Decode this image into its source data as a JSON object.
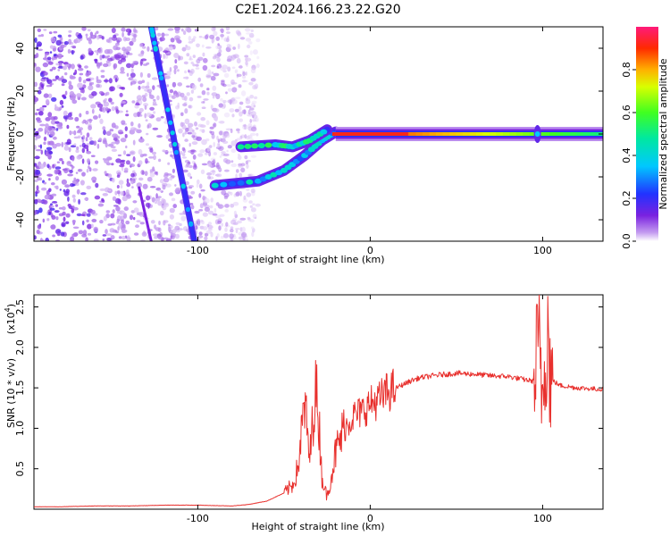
{
  "title": "C2E1.2024.166.23.22.G20",
  "chart_data": [
    {
      "type": "heatmap",
      "xlabel": "Height of straight line (km)",
      "ylabel": "Frequency (Hz)",
      "xlim": [
        -195,
        135
      ],
      "ylim": [
        -50,
        50
      ],
      "xticks": [
        -100,
        0,
        100
      ],
      "yticks": [
        -40,
        -20,
        0,
        20,
        40
      ],
      "colorbar": {
        "label": "Normalized spectral amplitude",
        "range": [
          0.0,
          1.0
        ],
        "ticks": [
          "0.0",
          "0.2",
          "0.4",
          "0.6",
          "0.8"
        ],
        "tick_values": [
          0.0,
          0.2,
          0.4,
          0.6,
          0.8
        ]
      },
      "features": {
        "noise_region_x": [
          -195,
          -65
        ],
        "steep_line_1": {
          "x": [
            -127,
            -102
          ],
          "y": [
            50,
            -50
          ],
          "amplitude": 0.2
        },
        "steep_line_2": {
          "x": [
            -134,
            -127
          ],
          "y": [
            -25,
            -50
          ],
          "amplitude": 0.12
        },
        "upper_branch": {
          "x": [
            -75,
            -55,
            -45,
            -35,
            -25
          ],
          "y": [
            -6,
            -5,
            -6,
            -3,
            2
          ],
          "amplitude": 0.45
        },
        "lower_branch": {
          "x": [
            -90,
            -65,
            -50,
            -38,
            -28,
            -20
          ],
          "y": [
            -24,
            -22,
            -17,
            -10,
            -3,
            1
          ],
          "amplitude": 0.35
        },
        "central_line": {
          "x": [
            -20,
            135
          ],
          "y": [
            0,
            0
          ],
          "amplitude": [
            0.95,
            0.75,
            0.5
          ]
        },
        "spike_at_x": 97
      }
    },
    {
      "type": "line",
      "xlabel": "Height of straight line (km)",
      "ylabel": "SNR (10 * v/v)",
      "yunit": "(x10^4)",
      "yunit_text": "(x10",
      "yunit_exp": "4",
      "yunit_close": ")",
      "xlim": [
        -195,
        135
      ],
      "ylim": [
        0,
        2.65
      ],
      "xticks": [
        -100,
        0,
        100
      ],
      "yticks": [
        0.5,
        1.0,
        1.5,
        2.0,
        2.5
      ],
      "ytick_labels": [
        "0.5",
        "1.0",
        "1.5",
        "2.0",
        "2.5"
      ],
      "color": "#e8302d",
      "series": [
        {
          "x": [
            -195,
            -180,
            -160,
            -140,
            -120,
            -100,
            -80,
            -70,
            -60,
            -55,
            -50,
            -45,
            -42,
            -40,
            -38,
            -35,
            -32,
            -30,
            -28,
            -25,
            -20,
            -15,
            -10,
            -5,
            0,
            5,
            10,
            15,
            20,
            25,
            30,
            40,
            50,
            60,
            70,
            80,
            90,
            95,
            98,
            100,
            102,
            105,
            110,
            120,
            135
          ],
          "y": [
            0.03,
            0.03,
            0.04,
            0.04,
            0.05,
            0.05,
            0.04,
            0.06,
            0.1,
            0.15,
            0.2,
            0.3,
            0.5,
            0.9,
            1.3,
            0.6,
            1.5,
            1.2,
            0.4,
            0.15,
            0.7,
            1.0,
            1.15,
            1.2,
            1.3,
            1.35,
            1.45,
            1.5,
            1.55,
            1.6,
            1.63,
            1.66,
            1.68,
            1.67,
            1.65,
            1.64,
            1.6,
            1.58,
            2.0,
            1.4,
            2.4,
            1.6,
            1.53,
            1.5,
            1.48
          ]
        }
      ]
    }
  ]
}
